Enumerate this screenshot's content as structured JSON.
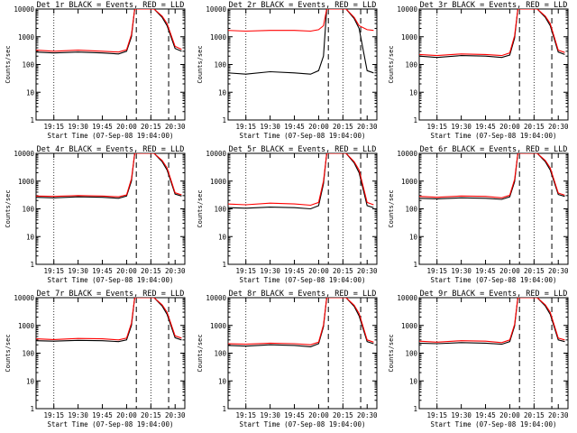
{
  "figure": {
    "xlabel": "Start Time (07-Sep-08 19:04:00)",
    "ylabel": "Counts/sec"
  },
  "chart_data": [
    {
      "type": "line",
      "title": "Det 1r BLACK = Events, RED = LLD",
      "xlabel": "Start Time (07-Sep-08 19:04:00)",
      "ylabel": "Counts/sec",
      "ylog": true,
      "ylim": [
        1,
        10000
      ],
      "x_ticks": [
        "19:15",
        "19:30",
        "19:45",
        "20:00",
        "20:15",
        "20:30"
      ],
      "y_ticks": [
        "1",
        "10",
        "100",
        "1000",
        "10000"
      ],
      "vlines_dotted": [
        "19:15",
        "20:15"
      ],
      "vlines_dashed": [
        "20:06",
        "20:26"
      ],
      "series": [
        {
          "color": "#000000",
          "x": [
            "19:04",
            "19:15",
            "19:30",
            "19:45",
            "19:55",
            "20:00",
            "20:03",
            "20:05",
            "20:12",
            "20:17",
            "20:22",
            "20:25",
            "20:30",
            "20:34"
          ],
          "values": [
            280,
            260,
            280,
            260,
            240,
            300,
            1000,
            10000,
            10000,
            10000,
            5000,
            2500,
            380,
            300
          ]
        },
        {
          "color": "#ff0000",
          "x": [
            "19:04",
            "19:15",
            "19:30",
            "19:45",
            "19:55",
            "20:00",
            "20:03",
            "20:05",
            "20:12",
            "20:17",
            "20:22",
            "20:25",
            "20:30",
            "20:34"
          ],
          "values": [
            330,
            300,
            330,
            300,
            280,
            340,
            1200,
            10000,
            10000,
            10000,
            5500,
            3000,
            450,
            350
          ]
        }
      ]
    },
    {
      "type": "line",
      "title": "Det 2r BLACK = Events, RED = LLD",
      "xlabel": "Start Time (07-Sep-08 19:04:00)",
      "ylabel": "Counts/sec",
      "ylog": true,
      "ylim": [
        1,
        10000
      ],
      "x_ticks": [
        "19:15",
        "19:30",
        "19:45",
        "20:00",
        "20:15",
        "20:30"
      ],
      "y_ticks": [
        "1",
        "10",
        "100",
        "1000",
        "10000"
      ],
      "vlines_dotted": [
        "19:15",
        "20:15"
      ],
      "vlines_dashed": [
        "20:06",
        "20:26"
      ],
      "series": [
        {
          "color": "#000000",
          "x": [
            "19:04",
            "19:15",
            "19:30",
            "19:45",
            "19:55",
            "20:00",
            "20:03",
            "20:05",
            "20:12",
            "20:17",
            "20:22",
            "20:25",
            "20:30",
            "20:34"
          ],
          "values": [
            50,
            45,
            55,
            50,
            45,
            60,
            200,
            10000,
            10000,
            10000,
            4500,
            2000,
            60,
            50
          ]
        },
        {
          "color": "#ff0000",
          "x": [
            "19:04",
            "19:15",
            "19:30",
            "19:45",
            "19:55",
            "20:00",
            "20:03",
            "20:05",
            "20:12",
            "20:17",
            "20:22",
            "20:25",
            "20:30",
            "20:34"
          ],
          "values": [
            1700,
            1600,
            1700,
            1700,
            1600,
            1800,
            2500,
            10000,
            10000,
            10000,
            5000,
            2500,
            1800,
            1700
          ]
        }
      ]
    },
    {
      "type": "line",
      "title": "Det 3r BLACK = Events, RED = LLD",
      "xlabel": "Start Time (07-Sep-08 19:04:00)",
      "ylabel": "Counts/sec",
      "ylog": true,
      "ylim": [
        1,
        10000
      ],
      "x_ticks": [
        "19:15",
        "19:30",
        "19:45",
        "20:00",
        "20:15",
        "20:30"
      ],
      "y_ticks": [
        "1",
        "10",
        "100",
        "1000",
        "10000"
      ],
      "vlines_dotted": [
        "19:15",
        "20:15"
      ],
      "vlines_dashed": [
        "20:06",
        "20:26"
      ],
      "series": [
        {
          "color": "#000000",
          "x": [
            "19:04",
            "19:15",
            "19:30",
            "19:45",
            "19:55",
            "20:00",
            "20:03",
            "20:05",
            "20:12",
            "20:17",
            "20:22",
            "20:25",
            "20:30",
            "20:34"
          ],
          "values": [
            200,
            180,
            210,
            200,
            180,
            220,
            900,
            10000,
            10000,
            10000,
            5000,
            2500,
            280,
            230
          ]
        },
        {
          "color": "#ff0000",
          "x": [
            "19:04",
            "19:15",
            "19:30",
            "19:45",
            "19:55",
            "20:00",
            "20:03",
            "20:05",
            "20:12",
            "20:17",
            "20:22",
            "20:25",
            "20:30",
            "20:34"
          ],
          "values": [
            230,
            210,
            240,
            230,
            210,
            260,
            1100,
            10000,
            10000,
            10000,
            5500,
            3000,
            330,
            270
          ]
        }
      ]
    },
    {
      "type": "line",
      "title": "Det 4r BLACK = Events, RED = LLD",
      "xlabel": "Start Time (07-Sep-08 19:04:00)",
      "ylabel": "Counts/sec",
      "ylog": true,
      "ylim": [
        1,
        10000
      ],
      "x_ticks": [
        "19:15",
        "19:30",
        "19:45",
        "20:00",
        "20:15",
        "20:30"
      ],
      "y_ticks": [
        "1",
        "10",
        "100",
        "1000",
        "10000"
      ],
      "vlines_dotted": [
        "19:15",
        "20:15"
      ],
      "vlines_dashed": [
        "20:06",
        "20:26"
      ],
      "series": [
        {
          "color": "#000000",
          "x": [
            "19:04",
            "19:15",
            "19:30",
            "19:45",
            "19:55",
            "20:00",
            "20:03",
            "20:05",
            "20:12",
            "20:17",
            "20:22",
            "20:25",
            "20:30",
            "20:34"
          ],
          "values": [
            260,
            250,
            270,
            260,
            240,
            290,
            1000,
            10000,
            10000,
            10000,
            5000,
            2500,
            340,
            290
          ]
        },
        {
          "color": "#ff0000",
          "x": [
            "19:04",
            "19:15",
            "19:30",
            "19:45",
            "19:55",
            "20:00",
            "20:03",
            "20:05",
            "20:12",
            "20:17",
            "20:22",
            "20:25",
            "20:30",
            "20:34"
          ],
          "values": [
            290,
            280,
            300,
            290,
            270,
            320,
            1200,
            10000,
            10000,
            10000,
            5500,
            3000,
            380,
            320
          ]
        }
      ]
    },
    {
      "type": "line",
      "title": "Det 5r BLACK = Events, RED = LLD",
      "xlabel": "Start Time (07-Sep-08 19:04:00)",
      "ylabel": "Counts/sec",
      "ylog": true,
      "ylim": [
        1,
        10000
      ],
      "x_ticks": [
        "19:15",
        "19:30",
        "19:45",
        "20:00",
        "20:15",
        "20:30"
      ],
      "y_ticks": [
        "1",
        "10",
        "100",
        "1000",
        "10000"
      ],
      "vlines_dotted": [
        "19:15",
        "20:15"
      ],
      "vlines_dashed": [
        "20:06",
        "20:26"
      ],
      "series": [
        {
          "color": "#000000",
          "x": [
            "19:04",
            "19:15",
            "19:30",
            "19:45",
            "19:55",
            "20:00",
            "20:03",
            "20:05",
            "20:12",
            "20:17",
            "20:22",
            "20:25",
            "20:30",
            "20:34"
          ],
          "values": [
            110,
            105,
            115,
            110,
            100,
            130,
            800,
            10000,
            10000,
            10000,
            4500,
            2000,
            130,
            110
          ]
        },
        {
          "color": "#ff0000",
          "x": [
            "19:04",
            "19:15",
            "19:30",
            "19:45",
            "19:55",
            "20:00",
            "20:03",
            "20:05",
            "20:12",
            "20:17",
            "20:22",
            "20:25",
            "20:30",
            "20:34"
          ],
          "values": [
            150,
            140,
            160,
            150,
            135,
            170,
            1000,
            10000,
            10000,
            10000,
            5000,
            2500,
            170,
            140
          ]
        }
      ]
    },
    {
      "type": "line",
      "title": "Det 6r BLACK = Events, RED = LLD",
      "xlabel": "Start Time (07-Sep-08 19:04:00)",
      "ylabel": "Counts/sec",
      "ylog": true,
      "ylim": [
        1,
        10000
      ],
      "x_ticks": [
        "19:15",
        "19:30",
        "19:45",
        "20:00",
        "20:15",
        "20:30"
      ],
      "y_ticks": [
        "1",
        "10",
        "100",
        "1000",
        "10000"
      ],
      "vlines_dotted": [
        "19:15",
        "20:15"
      ],
      "vlines_dashed": [
        "20:06",
        "20:26"
      ],
      "series": [
        {
          "color": "#000000",
          "x": [
            "19:04",
            "19:15",
            "19:30",
            "19:45",
            "19:55",
            "20:00",
            "20:03",
            "20:05",
            "20:12",
            "20:17",
            "20:22",
            "20:25",
            "20:30",
            "20:34"
          ],
          "values": [
            240,
            230,
            250,
            240,
            220,
            270,
            950,
            10000,
            10000,
            10000,
            5000,
            2500,
            330,
            280
          ]
        },
        {
          "color": "#ff0000",
          "x": [
            "19:04",
            "19:15",
            "19:30",
            "19:45",
            "19:55",
            "20:00",
            "20:03",
            "20:05",
            "20:12",
            "20:17",
            "20:22",
            "20:25",
            "20:30",
            "20:34"
          ],
          "values": [
            280,
            260,
            290,
            280,
            250,
            310,
            1150,
            10000,
            10000,
            10000,
            5500,
            3000,
            370,
            310
          ]
        }
      ]
    },
    {
      "type": "line",
      "title": "Det 7r BLACK = Events, RED = LLD",
      "xlabel": "Start Time (07-Sep-08 19:04:00)",
      "ylabel": "Counts/sec",
      "ylog": true,
      "ylim": [
        1,
        10000
      ],
      "x_ticks": [
        "19:15",
        "19:30",
        "19:45",
        "20:00",
        "20:15",
        "20:30"
      ],
      "y_ticks": [
        "1",
        "10",
        "100",
        "1000",
        "10000"
      ],
      "vlines_dotted": [
        "19:15",
        "20:15"
      ],
      "vlines_dashed": [
        "20:06",
        "20:26"
      ],
      "series": [
        {
          "color": "#000000",
          "x": [
            "19:04",
            "19:15",
            "19:30",
            "19:45",
            "19:55",
            "20:00",
            "20:03",
            "20:05",
            "20:12",
            "20:17",
            "20:22",
            "20:25",
            "20:30",
            "20:34"
          ],
          "values": [
            280,
            270,
            290,
            280,
            260,
            300,
            1000,
            10000,
            10000,
            10000,
            5000,
            2500,
            360,
            300
          ]
        },
        {
          "color": "#ff0000",
          "x": [
            "19:04",
            "19:15",
            "19:30",
            "19:45",
            "19:55",
            "20:00",
            "20:03",
            "20:05",
            "20:12",
            "20:17",
            "20:22",
            "20:25",
            "20:30",
            "20:34"
          ],
          "values": [
            330,
            310,
            340,
            330,
            300,
            350,
            1200,
            10000,
            10000,
            10000,
            5500,
            3000,
            420,
            350
          ]
        }
      ]
    },
    {
      "type": "line",
      "title": "Det 8r BLACK = Events, RED = LLD",
      "xlabel": "Start Time (07-Sep-08 19:04:00)",
      "ylabel": "Counts/sec",
      "ylog": true,
      "ylim": [
        1,
        10000
      ],
      "x_ticks": [
        "19:15",
        "19:30",
        "19:45",
        "20:00",
        "20:15",
        "20:30"
      ],
      "y_ticks": [
        "1",
        "10",
        "100",
        "1000",
        "10000"
      ],
      "vlines_dotted": [
        "19:15",
        "20:15"
      ],
      "vlines_dashed": [
        "20:06",
        "20:26"
      ],
      "series": [
        {
          "color": "#000000",
          "x": [
            "19:04",
            "19:15",
            "19:30",
            "19:45",
            "19:55",
            "20:00",
            "20:03",
            "20:05",
            "20:12",
            "20:17",
            "20:22",
            "20:25",
            "20:30",
            "20:34"
          ],
          "values": [
            190,
            180,
            200,
            190,
            170,
            220,
            900,
            10000,
            10000,
            10000,
            4800,
            2200,
            260,
            220
          ]
        },
        {
          "color": "#ff0000",
          "x": [
            "19:04",
            "19:15",
            "19:30",
            "19:45",
            "19:55",
            "20:00",
            "20:03",
            "20:05",
            "20:12",
            "20:17",
            "20:22",
            "20:25",
            "20:30",
            "20:34"
          ],
          "values": [
            220,
            210,
            230,
            220,
            200,
            250,
            1050,
            10000,
            10000,
            10000,
            5300,
            2700,
            300,
            250
          ]
        }
      ]
    },
    {
      "type": "line",
      "title": "Det 9r BLACK = Events, RED = LLD",
      "xlabel": "Start Time (07-Sep-08 19:04:00)",
      "ylabel": "Counts/sec",
      "ylog": true,
      "ylim": [
        1,
        10000
      ],
      "x_ticks": [
        "19:15",
        "19:30",
        "19:45",
        "20:00",
        "20:15",
        "20:30"
      ],
      "y_ticks": [
        "1",
        "10",
        "100",
        "1000",
        "10000"
      ],
      "vlines_dotted": [
        "19:15",
        "20:15"
      ],
      "vlines_dashed": [
        "20:06",
        "20:26"
      ],
      "series": [
        {
          "color": "#000000",
          "x": [
            "19:04",
            "19:15",
            "19:30",
            "19:45",
            "19:55",
            "20:00",
            "20:03",
            "20:05",
            "20:12",
            "20:17",
            "20:22",
            "20:25",
            "20:30",
            "20:34"
          ],
          "values": [
            230,
            220,
            240,
            230,
            210,
            260,
            950,
            10000,
            10000,
            10000,
            5000,
            2500,
            300,
            260
          ]
        },
        {
          "color": "#ff0000",
          "x": [
            "19:04",
            "19:15",
            "19:30",
            "19:45",
            "19:55",
            "20:00",
            "20:03",
            "20:05",
            "20:12",
            "20:17",
            "20:22",
            "20:25",
            "20:30",
            "20:34"
          ],
          "values": [
            270,
            250,
            280,
            270,
            240,
            300,
            1100,
            10000,
            10000,
            10000,
            5500,
            3000,
            350,
            300
          ]
        }
      ]
    }
  ]
}
